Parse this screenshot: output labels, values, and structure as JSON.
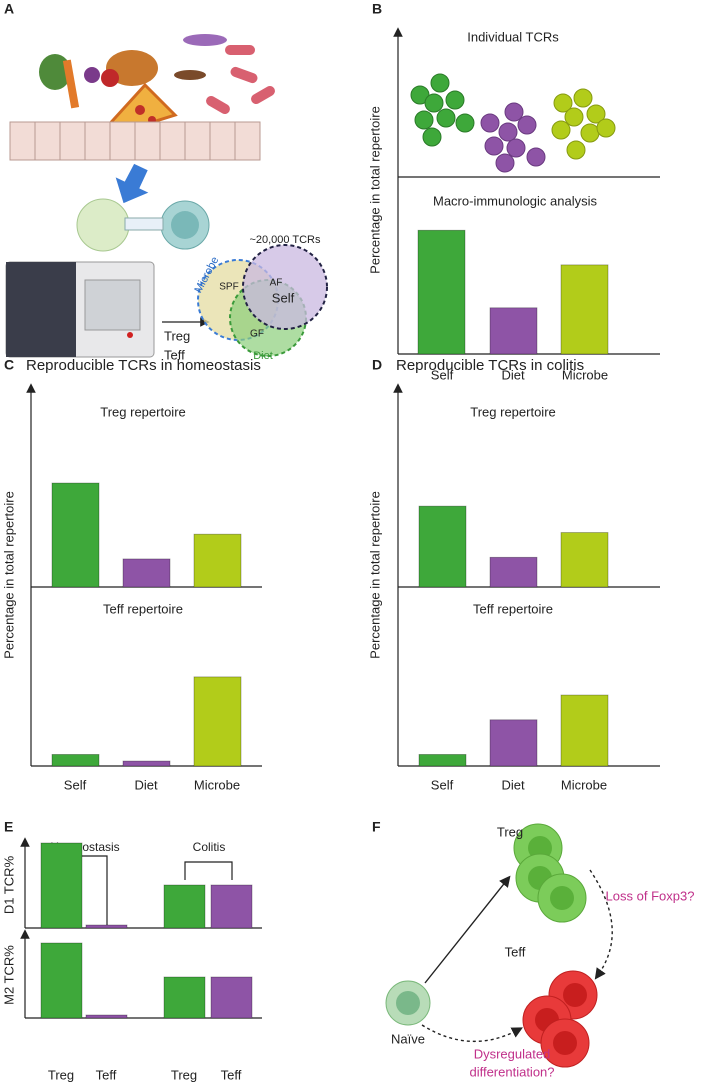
{
  "panels": {
    "A": {
      "letter": "A",
      "tcr_count": "~20,000 TCRs",
      "microbe": "Microbe",
      "spf": "SPF",
      "af": "AF",
      "self": "Self",
      "gf": "GF",
      "diet": "Diet",
      "treg": "Treg",
      "teff": "Teff"
    },
    "B": {
      "letter": "B",
      "upper_title": "Individual TCRs",
      "lower_title": "Macro-immunologic analysis",
      "y_label": "Percentage in total repertoire",
      "categories": [
        "Self",
        "Diet",
        "Microbe"
      ],
      "values": [
        75,
        28,
        54
      ],
      "colors": [
        "#3ea83a",
        "#8e54a6",
        "#b2cc1a"
      ],
      "ylim": [
        0,
        100
      ]
    },
    "C": {
      "letter": "C",
      "title": "Reproducible TCRs in homeostasis",
      "y_label": "Percentage in total repertoire",
      "categories": [
        "Self",
        "Diet",
        "Microbe"
      ],
      "colors": [
        "#3ea83a",
        "#8e54a6",
        "#b2cc1a"
      ],
      "ylim": [
        0,
        100
      ],
      "treg": {
        "title": "Treg repertoire",
        "values": [
          63,
          17,
          32
        ]
      },
      "teff": {
        "title": "Teff repertoire",
        "values": [
          7,
          3,
          54
        ]
      }
    },
    "D": {
      "letter": "D",
      "title": "Reproducible TCRs in colitis",
      "y_label": "Percentage in total repertoire",
      "categories": [
        "Self",
        "Diet",
        "Microbe"
      ],
      "colors": [
        "#3ea83a",
        "#8e54a6",
        "#b2cc1a"
      ],
      "ylim": [
        0,
        100
      ],
      "treg": {
        "title": "Treg repertoire",
        "values": [
          49,
          18,
          33
        ]
      },
      "teff": {
        "title": "Teff repertoire",
        "values": [
          7,
          28,
          43
        ]
      }
    },
    "E": {
      "letter": "E",
      "groups": [
        "Homeostasis",
        "Colitis"
      ],
      "categories": [
        "Treg",
        "Teff",
        "Treg",
        "Teff"
      ],
      "colors": [
        "#3ea83a",
        "#8e54a6",
        "#3ea83a",
        "#8e54a6"
      ],
      "ylim": [
        0,
        100
      ],
      "d1": {
        "y_label": "D1 TCR%",
        "values": [
          85,
          3,
          43,
          43
        ]
      },
      "m2": {
        "y_label": "M2 TCR%",
        "values": [
          75,
          3,
          41,
          41
        ]
      }
    },
    "F": {
      "letter": "F",
      "treg": "Treg",
      "teff": "Teff",
      "naive": "Naïve",
      "loss": "Loss of Foxp3?",
      "dysregulated": [
        "Dysregulated",
        "differentiation?"
      ]
    }
  }
}
